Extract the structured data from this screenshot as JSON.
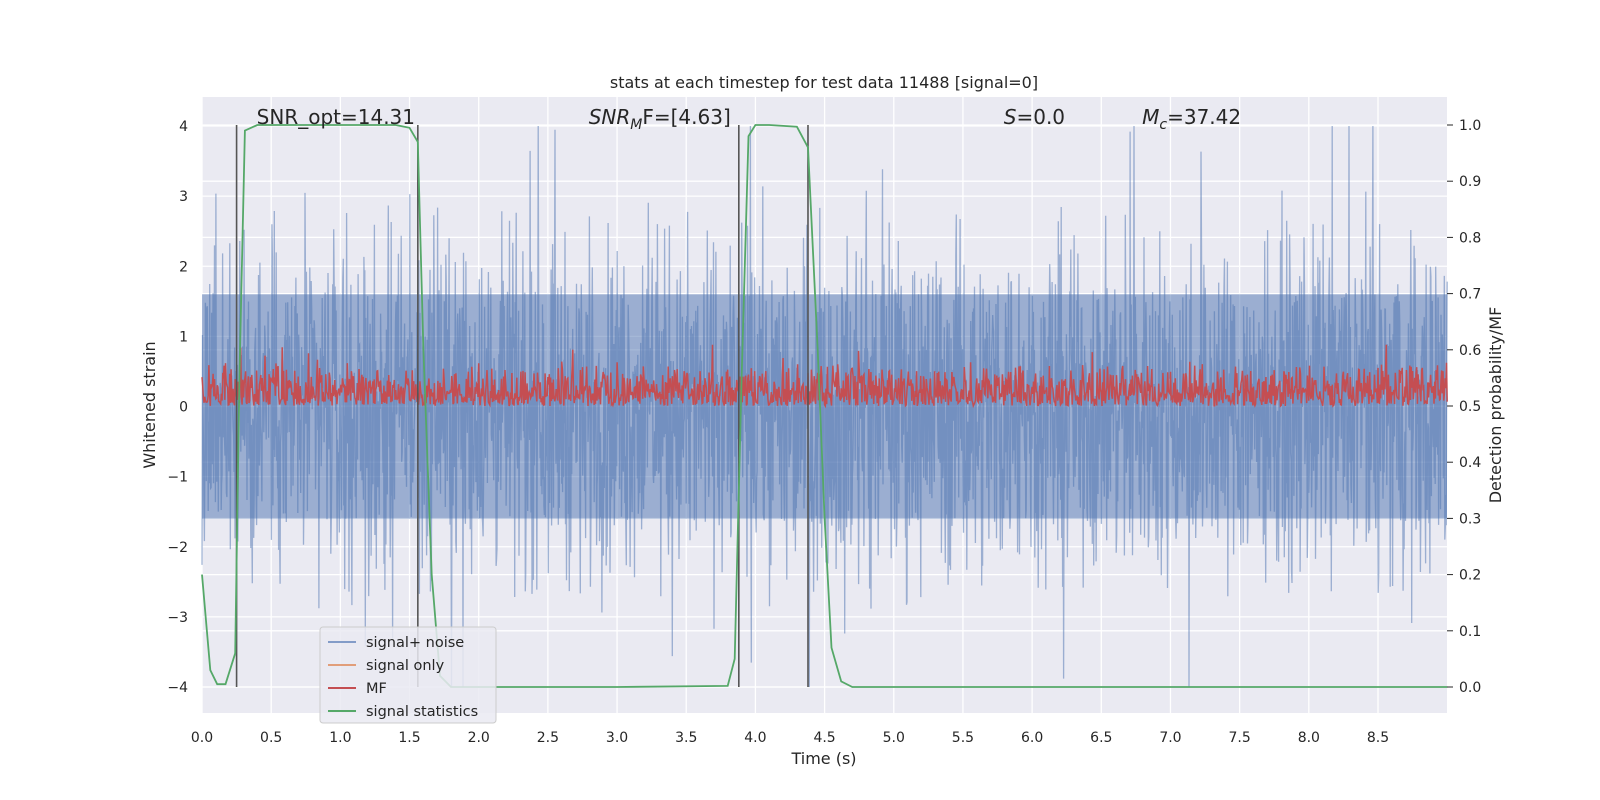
{
  "chart_data": {
    "type": "line",
    "title": "stats at each timestep for test data 11488 [signal=0]",
    "xlabel": "Time (s)",
    "ylabel": "Whitened strain",
    "y2label": "Detection probability/MF",
    "xlim": [
      0,
      9.0
    ],
    "ylim": [
      -4.4,
      4.4
    ],
    "y2lim": [
      -0.05,
      1.05
    ],
    "x_ticks": [
      "0.0",
      "0.5",
      "1.0",
      "1.5",
      "2.0",
      "2.5",
      "3.0",
      "3.5",
      "4.0",
      "4.5",
      "5.0",
      "5.5",
      "6.0",
      "6.5",
      "7.0",
      "7.5",
      "8.0",
      "8.5"
    ],
    "y_ticks": [
      "−4",
      "−3",
      "−2",
      "−1",
      "0",
      "1",
      "2",
      "3",
      "4"
    ],
    "y2_ticks": [
      "0.0",
      "0.1",
      "0.2",
      "0.3",
      "0.4",
      "0.5",
      "0.6",
      "0.7",
      "0.8",
      "0.9",
      "1.0"
    ],
    "grid": true,
    "legend_position": "lower-left",
    "annotations": [
      {
        "text": "SNR_opt=14.31",
        "x": 0.2,
        "y": 4.1
      },
      {
        "text": "SNR",
        "sub": "M",
        "rest": "F=[4.63]",
        "italic": true,
        "x": 2.6,
        "y": 4.1
      },
      {
        "text": "S",
        "rest": "=0.0",
        "italic": true,
        "x": 5.6,
        "y": 4.1
      },
      {
        "text": "M",
        "sub": "c",
        "rest": "=37.42",
        "italic": true,
        "x": 6.6,
        "y": 4.1
      }
    ],
    "vertical_lines": [
      0.25,
      1.56,
      3.88,
      4.38
    ],
    "series": [
      {
        "name": "signal+ noise",
        "color": "#4c72b0",
        "opacity": 0.5,
        "description": "whitened noisy strain, amplitude roughly within ±4",
        "typical_amplitude": 1.6,
        "peak_amplitude": 4.0
      },
      {
        "name": "signal only",
        "color": "#dd8452",
        "opacity": 0.6,
        "values_note": "zero signal (signal=0)"
      },
      {
        "name": "MF",
        "color": "#c44e52",
        "axis": "right",
        "baseline": 0.5,
        "typical_range": [
          0.5,
          0.58
        ],
        "peak": 0.62
      },
      {
        "name": "signal statistics",
        "color": "#55a868",
        "axis": "right",
        "x": [
          0.0,
          0.06,
          0.11,
          0.17,
          0.24,
          0.27,
          0.31,
          0.4,
          0.6,
          1.0,
          1.4,
          1.5,
          1.56,
          1.6,
          1.66,
          1.72,
          1.8,
          2.0,
          3.0,
          3.8,
          3.85,
          3.9,
          3.95,
          4.0,
          4.1,
          4.3,
          4.38,
          4.45,
          4.5,
          4.55,
          4.62,
          4.7,
          5.0,
          9.0
        ],
        "values": [
          0.2,
          0.03,
          0.005,
          0.005,
          0.06,
          0.55,
          0.99,
          1.0,
          1.0,
          1.0,
          1.0,
          0.995,
          0.97,
          0.6,
          0.2,
          0.02,
          0.0,
          0.0,
          0.0,
          0.002,
          0.05,
          0.55,
          0.98,
          1.0,
          1.0,
          0.997,
          0.96,
          0.6,
          0.3,
          0.07,
          0.01,
          0.0,
          0.0,
          0.0
        ]
      }
    ]
  }
}
